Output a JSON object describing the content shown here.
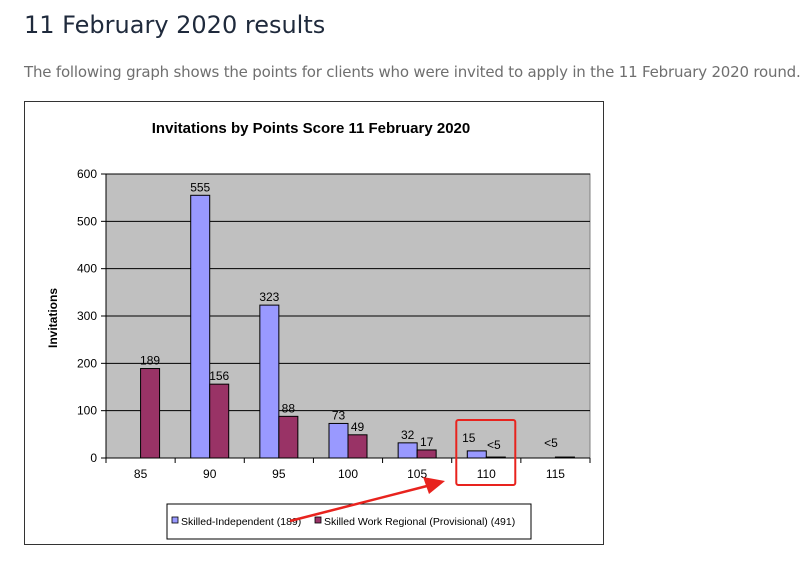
{
  "page": {
    "heading": "11 February 2020 results",
    "intro": "The following graph shows the points for clients who were invited to apply in the 11 February 2020 round."
  },
  "chart_data": {
    "type": "bar",
    "title": "Invitations by Points Score 11 February 2020",
    "xlabel": "",
    "ylabel": "Invitations",
    "ylim": [
      0,
      600
    ],
    "yticks": [
      0,
      100,
      200,
      300,
      400,
      500,
      600
    ],
    "categories": [
      "85",
      "90",
      "95",
      "100",
      "105",
      "110",
      "115"
    ],
    "grid": true,
    "legend_position": "bottom",
    "series": [
      {
        "name": "Skilled-Independent (189)",
        "color": "#9999ff",
        "values": [
          0,
          555,
          323,
          73,
          32,
          15,
          0
        ],
        "labels": [
          "",
          "555",
          "323",
          "73",
          "32",
          "15",
          ""
        ]
      },
      {
        "name": "Skilled Work Regional (Provisional) (491)",
        "color": "#993366",
        "values": [
          189,
          156,
          88,
          49,
          17,
          2,
          2
        ],
        "labels": [
          "189",
          "156",
          "88",
          "49",
          "17",
          "<5",
          "<5"
        ]
      }
    ],
    "plot_background": "#c0c0c0",
    "annotations": {
      "highlight_category": "110",
      "highlight_color": "#e8231e"
    }
  }
}
